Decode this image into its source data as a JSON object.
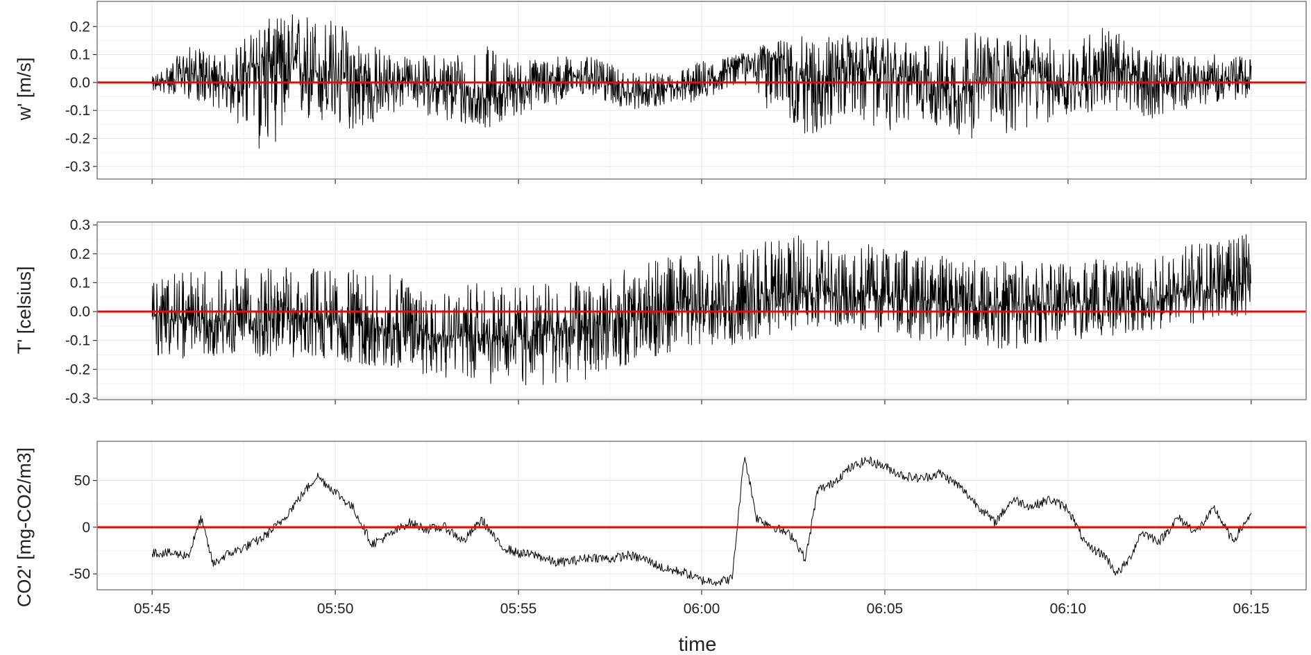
{
  "chart_data": [
    {
      "type": "line",
      "ylabel": "w' [m/s]",
      "ylim": [
        -0.345,
        0.29
      ],
      "yticks": [
        0.2,
        0.1,
        0.0,
        -0.1,
        -0.2,
        -0.3
      ],
      "ytick_labels": [
        "0.2",
        "0.1",
        "0.0",
        "-0.1",
        "-0.2",
        "-0.3"
      ],
      "reference_line": 0.0,
      "reference_color": "#ff0000",
      "series": [
        {
          "color": "#000000",
          "x": [
            "05:45:00",
            "05:46:00",
            "05:47:00",
            "05:48:00",
            "05:49:00",
            "05:50:00",
            "05:51:00",
            "05:52:00",
            "05:53:00",
            "05:54:00",
            "05:55:00",
            "05:56:00",
            "05:57:00",
            "05:58:00",
            "05:59:00",
            "06:00:00",
            "06:01:00",
            "06:02:00",
            "06:03:00",
            "06:04:00",
            "06:05:00",
            "06:06:00",
            "06:07:00",
            "06:08:00",
            "06:09:00",
            "06:10:00",
            "06:11:00",
            "06:12:00",
            "06:13:00",
            "06:14:00",
            "06:15:00"
          ],
          "y": [
            -0.01,
            0.04,
            -0.02,
            0.08,
            0.05,
            0.02,
            -0.02,
            0.01,
            -0.03,
            -0.06,
            -0.02,
            0.01,
            0.03,
            -0.04,
            -0.03,
            -0.01,
            0.07,
            0.09,
            0.0,
            0.06,
            0.03,
            0.01,
            -0.03,
            0.02,
            0.04,
            -0.02,
            0.05,
            0.02,
            -0.01,
            0.01,
            0.02
          ],
          "envelope_low": [
            -0.03,
            -0.06,
            -0.1,
            -0.26,
            -0.14,
            -0.18,
            -0.16,
            -0.08,
            -0.15,
            -0.17,
            -0.12,
            -0.08,
            -0.05,
            -0.1,
            -0.08,
            -0.07,
            0.0,
            -0.12,
            -0.2,
            -0.12,
            -0.18,
            -0.13,
            -0.2,
            -0.2,
            -0.17,
            -0.12,
            -0.1,
            -0.14,
            -0.1,
            -0.07,
            -0.06
          ],
          "envelope_high": [
            0.02,
            0.13,
            0.1,
            0.22,
            0.26,
            0.23,
            0.14,
            0.09,
            0.11,
            0.14,
            0.08,
            0.1,
            0.09,
            0.04,
            0.03,
            0.08,
            0.1,
            0.15,
            0.17,
            0.17,
            0.16,
            0.13,
            0.19,
            0.17,
            0.17,
            0.15,
            0.21,
            0.12,
            0.1,
            0.1,
            0.09
          ]
        }
      ]
    },
    {
      "type": "line",
      "ylabel": "T' [celsius]",
      "ylim": [
        -0.305,
        0.31
      ],
      "yticks": [
        0.3,
        0.2,
        0.1,
        0.0,
        -0.1,
        -0.2,
        -0.3
      ],
      "ytick_labels": [
        "0.3",
        "0.2",
        "0.1",
        "0.0",
        "-0.1",
        "-0.2",
        "-0.3"
      ],
      "reference_line": 0.0,
      "reference_color": "#ff0000",
      "series": [
        {
          "color": "#000000",
          "x": [
            "05:45:00",
            "05:46:00",
            "05:47:00",
            "05:48:00",
            "05:49:00",
            "05:50:00",
            "05:51:00",
            "05:52:00",
            "05:53:00",
            "05:54:00",
            "05:55:00",
            "05:56:00",
            "05:57:00",
            "05:58:00",
            "05:59:00",
            "06:00:00",
            "06:01:00",
            "06:02:00",
            "06:03:00",
            "06:04:00",
            "06:05:00",
            "06:06:00",
            "06:07:00",
            "06:08:00",
            "06:09:00",
            "06:10:00",
            "06:11:00",
            "06:12:00",
            "06:13:00",
            "06:14:00",
            "06:15:00"
          ],
          "y": [
            -0.02,
            -0.03,
            -0.03,
            -0.03,
            -0.02,
            -0.03,
            -0.05,
            -0.07,
            -0.08,
            -0.08,
            -0.09,
            -0.07,
            -0.05,
            -0.03,
            0.0,
            0.02,
            0.03,
            0.05,
            0.07,
            0.07,
            0.06,
            0.04,
            0.03,
            0.02,
            0.02,
            0.03,
            0.04,
            0.05,
            0.06,
            0.08,
            0.1
          ],
          "envelope_low": [
            -0.17,
            -0.16,
            -0.15,
            -0.16,
            -0.16,
            -0.17,
            -0.19,
            -0.21,
            -0.23,
            -0.25,
            -0.27,
            -0.26,
            -0.23,
            -0.19,
            -0.15,
            -0.14,
            -0.11,
            -0.08,
            -0.05,
            -0.06,
            -0.08,
            -0.1,
            -0.12,
            -0.13,
            -0.13,
            -0.11,
            -0.09,
            -0.07,
            -0.05,
            -0.03,
            -0.02
          ],
          "envelope_high": [
            0.12,
            0.14,
            0.15,
            0.15,
            0.16,
            0.15,
            0.14,
            0.12,
            0.1,
            0.1,
            0.09,
            0.1,
            0.13,
            0.15,
            0.19,
            0.2,
            0.22,
            0.25,
            0.27,
            0.25,
            0.23,
            0.2,
            0.19,
            0.18,
            0.18,
            0.19,
            0.2,
            0.21,
            0.23,
            0.26,
            0.27
          ]
        }
      ]
    },
    {
      "type": "line",
      "ylabel": "CO2' [mg-CO2/m3]",
      "xlabel": "time",
      "ylim": [
        -67,
        92
      ],
      "yticks": [
        50,
        0,
        -50
      ],
      "ytick_labels": [
        "50",
        "0",
        "-50"
      ],
      "xticks": [
        "05:45",
        "05:50",
        "05:55",
        "06:00",
        "06:05",
        "06:10",
        "06:15"
      ],
      "xlim": [
        "05:43:30",
        "06:16:30"
      ],
      "reference_line": 0,
      "reference_color": "#ff0000",
      "series": [
        {
          "color": "#000000",
          "x": [
            "05:45:00",
            "05:45:30",
            "05:46:00",
            "05:46:20",
            "05:46:40",
            "05:47:00",
            "05:47:30",
            "05:48:00",
            "05:48:30",
            "05:49:00",
            "05:49:30",
            "05:50:00",
            "05:50:30",
            "05:51:00",
            "05:51:30",
            "05:52:00",
            "05:52:30",
            "05:53:00",
            "05:53:30",
            "05:54:00",
            "05:54:30",
            "05:55:00",
            "05:55:30",
            "05:56:00",
            "05:56:30",
            "05:57:00",
            "05:57:30",
            "05:58:00",
            "05:58:30",
            "05:59:00",
            "05:59:30",
            "06:00:00",
            "06:00:30",
            "06:00:50",
            "06:01:10",
            "06:01:30",
            "06:02:00",
            "06:02:30",
            "06:02:50",
            "06:03:10",
            "06:03:30",
            "06:04:00",
            "06:04:30",
            "06:05:00",
            "06:05:30",
            "06:06:00",
            "06:06:30",
            "06:07:00",
            "06:07:30",
            "06:08:00",
            "06:08:30",
            "06:09:00",
            "06:09:30",
            "06:10:00",
            "06:10:30",
            "06:11:00",
            "06:11:20",
            "06:11:40",
            "06:12:00",
            "06:12:30",
            "06:13:00",
            "06:13:30",
            "06:14:00",
            "06:14:30",
            "06:15:00"
          ],
          "y": [
            -27,
            -28,
            -30,
            10,
            -40,
            -30,
            -22,
            -12,
            5,
            30,
            55,
            38,
            20,
            -18,
            -8,
            5,
            -2,
            0,
            -15,
            8,
            -20,
            -28,
            -30,
            -38,
            -36,
            -32,
            -34,
            -30,
            -35,
            -45,
            -48,
            -57,
            -58,
            -55,
            78,
            10,
            0,
            -10,
            -35,
            40,
            45,
            62,
            72,
            65,
            55,
            52,
            58,
            45,
            25,
            5,
            30,
            22,
            30,
            20,
            -20,
            -30,
            -50,
            -35,
            -5,
            -15,
            10,
            -5,
            20,
            -15,
            15
          ]
        }
      ]
    }
  ]
}
